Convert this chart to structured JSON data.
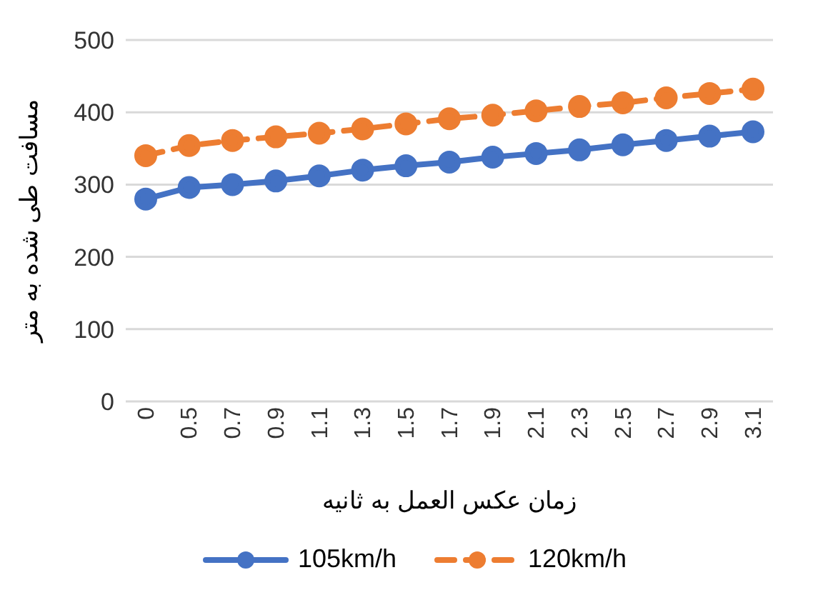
{
  "chart_data": {
    "type": "line",
    "xlabel": "زمان عکس العمل به ثانیه",
    "ylabel": "مسافت طی شده به متر",
    "categories": [
      "0",
      "0.5",
      "0.7",
      "0.9",
      "1.1",
      "1.3",
      "1.5",
      "1.7",
      "1.9",
      "2.1",
      "2.3",
      "2.5",
      "2.7",
      "2.9",
      "3.1"
    ],
    "series": [
      {
        "name": "105km/h",
        "color": "#4472c4",
        "line_style": "solid",
        "values": [
          280,
          296,
          300,
          305,
          312,
          320,
          326,
          331,
          338,
          343,
          348,
          355,
          361,
          367,
          373
        ]
      },
      {
        "name": "120km/h",
        "color": "#ed7d31",
        "line_style": "dashed",
        "values": [
          340,
          354,
          361,
          366,
          371,
          377,
          384,
          391,
          396,
          402,
          408,
          413,
          420,
          426,
          432
        ]
      }
    ],
    "ylim": [
      0,
      500
    ],
    "yticks": [
      0,
      100,
      200,
      300,
      400,
      500
    ],
    "grid": "y",
    "legend": "bottom",
    "marker": "circle"
  }
}
